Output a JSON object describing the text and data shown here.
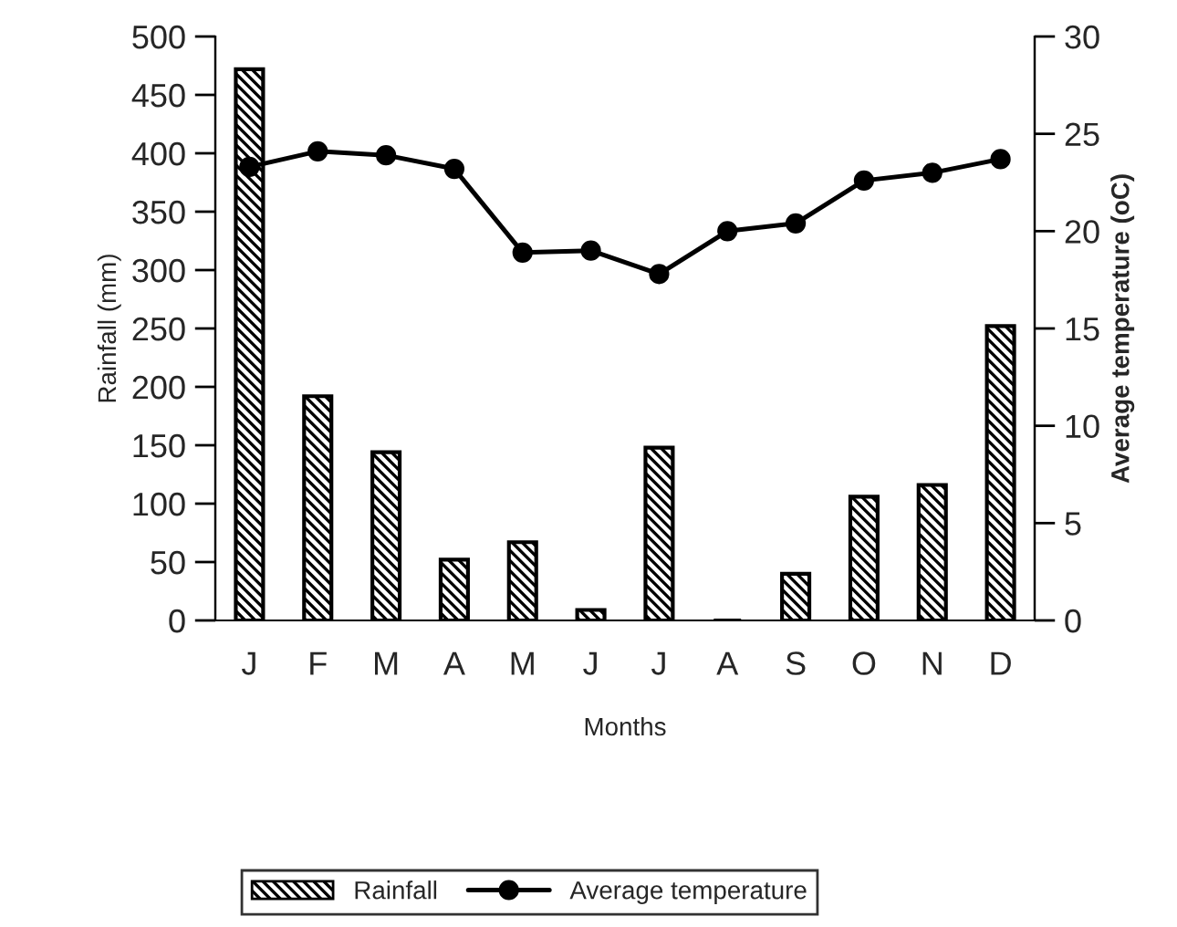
{
  "chart_data": {
    "type": "bar",
    "xlabel": "Months",
    "ylabel": "Rainfall (mm)",
    "y2label": "Average temperature (oC)",
    "categories": [
      "J",
      "F",
      "M",
      "A",
      "M",
      "J",
      "J",
      "A",
      "S",
      "O",
      "N",
      "D"
    ],
    "series": [
      {
        "name": "Rainfall",
        "color": "#000000",
        "values": [
          472,
          192,
          144,
          52,
          67,
          9,
          148,
          0,
          40,
          106,
          116,
          252
        ]
      },
      {
        "name": "Average temperature",
        "type": "line",
        "axis": "y2",
        "color": "#000000",
        "marker": "circle",
        "values": [
          23.3,
          24.1,
          23.9,
          23.2,
          18.9,
          19.0,
          17.8,
          20.0,
          20.4,
          22.6,
          23.0,
          23.7
        ]
      }
    ],
    "ylim": [
      0,
      500
    ],
    "yticks": [
      0,
      50,
      100,
      150,
      200,
      250,
      300,
      350,
      400,
      450,
      500
    ],
    "y2lim": [
      0,
      30
    ],
    "y2ticks": [
      0,
      5,
      10,
      15,
      20,
      25,
      30
    ],
    "grid": false,
    "legend": "bottom"
  }
}
